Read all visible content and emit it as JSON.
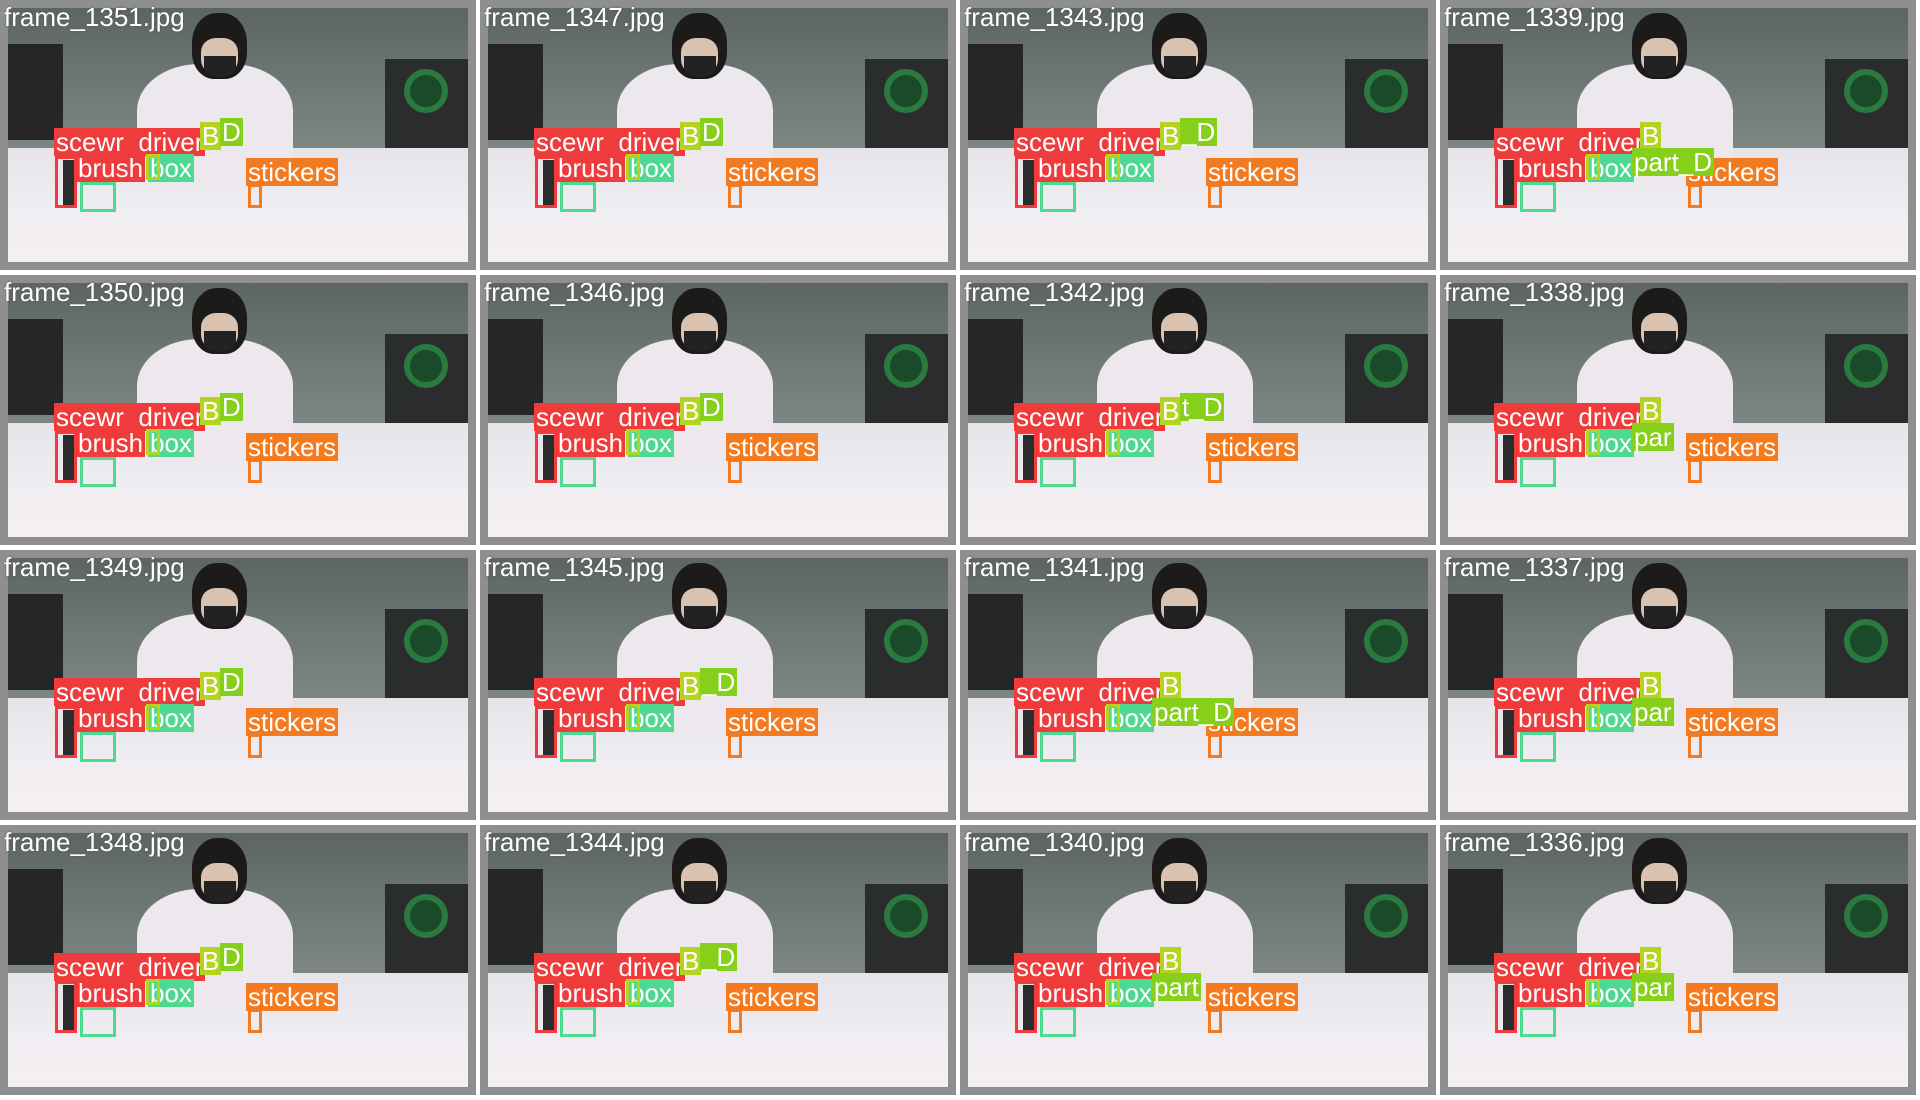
{
  "colors": {
    "scewr_driver": "#ef3b3b",
    "brush": "#ef3b3b",
    "box": "#4fd88f",
    "B_D": "#b5d321",
    "part_D": "#86cf1a",
    "stickers": "#f47a20"
  },
  "frames": [
    {
      "name": "frame_1351.jpg",
      "labels": {
        "scewr_driver": "scewr_driver",
        "brush": "brush",
        "box": "box",
        "bd": "B",
        "bd2": "D",
        "stickers": "stickers",
        "part": ""
      }
    },
    {
      "name": "frame_1347.jpg",
      "labels": {
        "scewr_driver": "scewr_driver",
        "brush": "brush",
        "box": "box",
        "bd": "B",
        "bd2": "D",
        "stickers": "stickers",
        "part": ""
      }
    },
    {
      "name": "frame_1343.jpg",
      "labels": {
        "scewr_driver": "scewr_driver",
        "brush": "brush",
        "box": "box",
        "bd": "B",
        "bd2": "_D",
        "stickers": "stickers",
        "part": ""
      }
    },
    {
      "name": "frame_1339.jpg",
      "labels": {
        "scewr_driver": "scewr_driver",
        "brush": "brush",
        "box": "box",
        "bd": "B",
        "bd2": "",
        "stickers": "stickers",
        "part": "part_D"
      }
    },
    {
      "name": "frame_1350.jpg",
      "labels": {
        "scewr_driver": "scewr_driver",
        "brush": "brush",
        "box": "box",
        "bd": "B",
        "bd2": "D",
        "stickers": "stickers",
        "part": ""
      }
    },
    {
      "name": "frame_1346.jpg",
      "labels": {
        "scewr_driver": "scewr_driver",
        "brush": "brush",
        "box": "box",
        "bd": "B",
        "bd2": "D",
        "stickers": "stickers",
        "part": ""
      }
    },
    {
      "name": "frame_1342.jpg",
      "labels": {
        "scewr_driver": "scewr_driver",
        "brush": "brush",
        "box": "box",
        "bd": "B",
        "bd2": "t_D",
        "stickers": "stickers",
        "part": ""
      }
    },
    {
      "name": "frame_1338.jpg",
      "labels": {
        "scewr_driver": "scewr_driver",
        "brush": "brush",
        "box": "box",
        "bd": "B",
        "bd2": "",
        "stickers": "stickers",
        "part": "par"
      }
    },
    {
      "name": "frame_1349.jpg",
      "labels": {
        "scewr_driver": "scewr_driver",
        "brush": "brush",
        "box": "box",
        "bd": "B",
        "bd2": "D",
        "stickers": "stickers",
        "part": ""
      }
    },
    {
      "name": "frame_1345.jpg",
      "labels": {
        "scewr_driver": "scewr_driver",
        "brush": "brush",
        "box": "box",
        "bd": "B",
        "bd2": "_D",
        "stickers": "stickers",
        "part": ""
      }
    },
    {
      "name": "frame_1341.jpg",
      "labels": {
        "scewr_driver": "scewr_driver",
        "brush": "brush",
        "box": "box",
        "bd": "B",
        "bd2": "",
        "stickers": "stickers",
        "part": "part_D"
      }
    },
    {
      "name": "frame_1337.jpg",
      "labels": {
        "scewr_driver": "scewr_driver",
        "brush": "brush",
        "box": "box",
        "bd": "B",
        "bd2": "",
        "stickers": "stickers",
        "part": "par"
      }
    },
    {
      "name": "frame_1348.jpg",
      "labels": {
        "scewr_driver": "scewr_driver",
        "brush": "brush",
        "box": "box",
        "bd": "B",
        "bd2": "D",
        "stickers": "stickers",
        "part": ""
      }
    },
    {
      "name": "frame_1344.jpg",
      "labels": {
        "scewr_driver": "scewr_driver",
        "brush": "brush",
        "box": "box",
        "bd": "B",
        "bd2": "_D",
        "stickers": "stickers",
        "part": ""
      }
    },
    {
      "name": "frame_1340.jpg",
      "labels": {
        "scewr_driver": "scewr_driver",
        "brush": "brush",
        "box": "box",
        "bd": "B",
        "bd2": "",
        "stickers": "stickers",
        "part": "part"
      }
    },
    {
      "name": "frame_1336.jpg",
      "labels": {
        "scewr_driver": "scewr_driver",
        "brush": "brush",
        "box": "box",
        "bd": "B",
        "bd2": "",
        "stickers": "stickers",
        "part": "par"
      }
    }
  ]
}
